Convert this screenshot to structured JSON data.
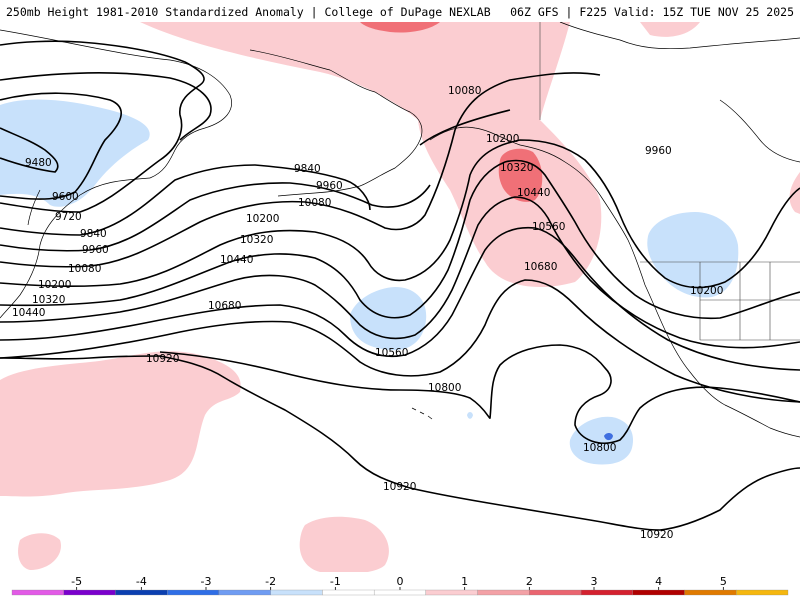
{
  "header": {
    "title_left": "250mb Height 1981-2010 Standardized Anomaly | College of DuPage NEXLAB",
    "title_right": "06Z GFS | F225 Valid: 15Z TUE NOV 25 2025"
  },
  "contour_labels": [
    {
      "id": "c10080-n",
      "text": "10080"
    },
    {
      "id": "c10200-n",
      "text": "10200"
    },
    {
      "id": "c10320-hi",
      "text": "10320"
    },
    {
      "id": "c10440-hi",
      "text": "10440"
    },
    {
      "id": "c10560-e",
      "text": "10560"
    },
    {
      "id": "c10680-e",
      "text": "10680"
    },
    {
      "id": "c9960-ne",
      "text": "9960"
    },
    {
      "id": "c10200-ne",
      "text": "10200"
    },
    {
      "id": "c9480",
      "text": "9480"
    },
    {
      "id": "c9600",
      "text": "9600"
    },
    {
      "id": "c9720",
      "text": "9720"
    },
    {
      "id": "c9840-w",
      "text": "9840"
    },
    {
      "id": "c9960-w",
      "text": "9960"
    },
    {
      "id": "c10080-w",
      "text": "10080"
    },
    {
      "id": "c10200-w",
      "text": "10200"
    },
    {
      "id": "c10320-w",
      "text": "10320"
    },
    {
      "id": "c10440-w",
      "text": "10440"
    },
    {
      "id": "c9840-c",
      "text": "9840"
    },
    {
      "id": "c9960-c",
      "text": "9960"
    },
    {
      "id": "c10080-c",
      "text": "10080"
    },
    {
      "id": "c10200-c",
      "text": "10200"
    },
    {
      "id": "c10320-c",
      "text": "10320"
    },
    {
      "id": "c10440-c",
      "text": "10440"
    },
    {
      "id": "c10680-c",
      "text": "10680"
    },
    {
      "id": "c10560-c",
      "text": "10560"
    },
    {
      "id": "c10920-w",
      "text": "10920"
    },
    {
      "id": "c10800-c",
      "text": "10800"
    },
    {
      "id": "c10800-se",
      "text": "10800"
    },
    {
      "id": "c10920-s",
      "text": "10920"
    },
    {
      "id": "c10920-se",
      "text": "10920"
    }
  ],
  "colorbar": {
    "min": -6,
    "max": 6,
    "ticks": [
      "-5",
      "-4",
      "-3",
      "-2",
      "-1",
      "0",
      "1",
      "2",
      "3",
      "4",
      "5"
    ],
    "colors": [
      "#e25ae6",
      "#7a00cc",
      "#0b3fb0",
      "#2f6ee6",
      "#6f9cf2",
      "#c8e1fb",
      "#ffffff",
      "#ffffff",
      "#fbcdd1",
      "#f3a1a6",
      "#ea6570",
      "#d4212f",
      "#b00000",
      "#e07a00",
      "#f5b70f"
    ]
  },
  "colors": {
    "anomaly_pos_1": "#fbcdd1",
    "anomaly_pos_2": "#f07077",
    "anomaly_neg_1": "#c8e1fb",
    "anomaly_neg_2": "#3f6fe0",
    "contour": "#000000"
  }
}
